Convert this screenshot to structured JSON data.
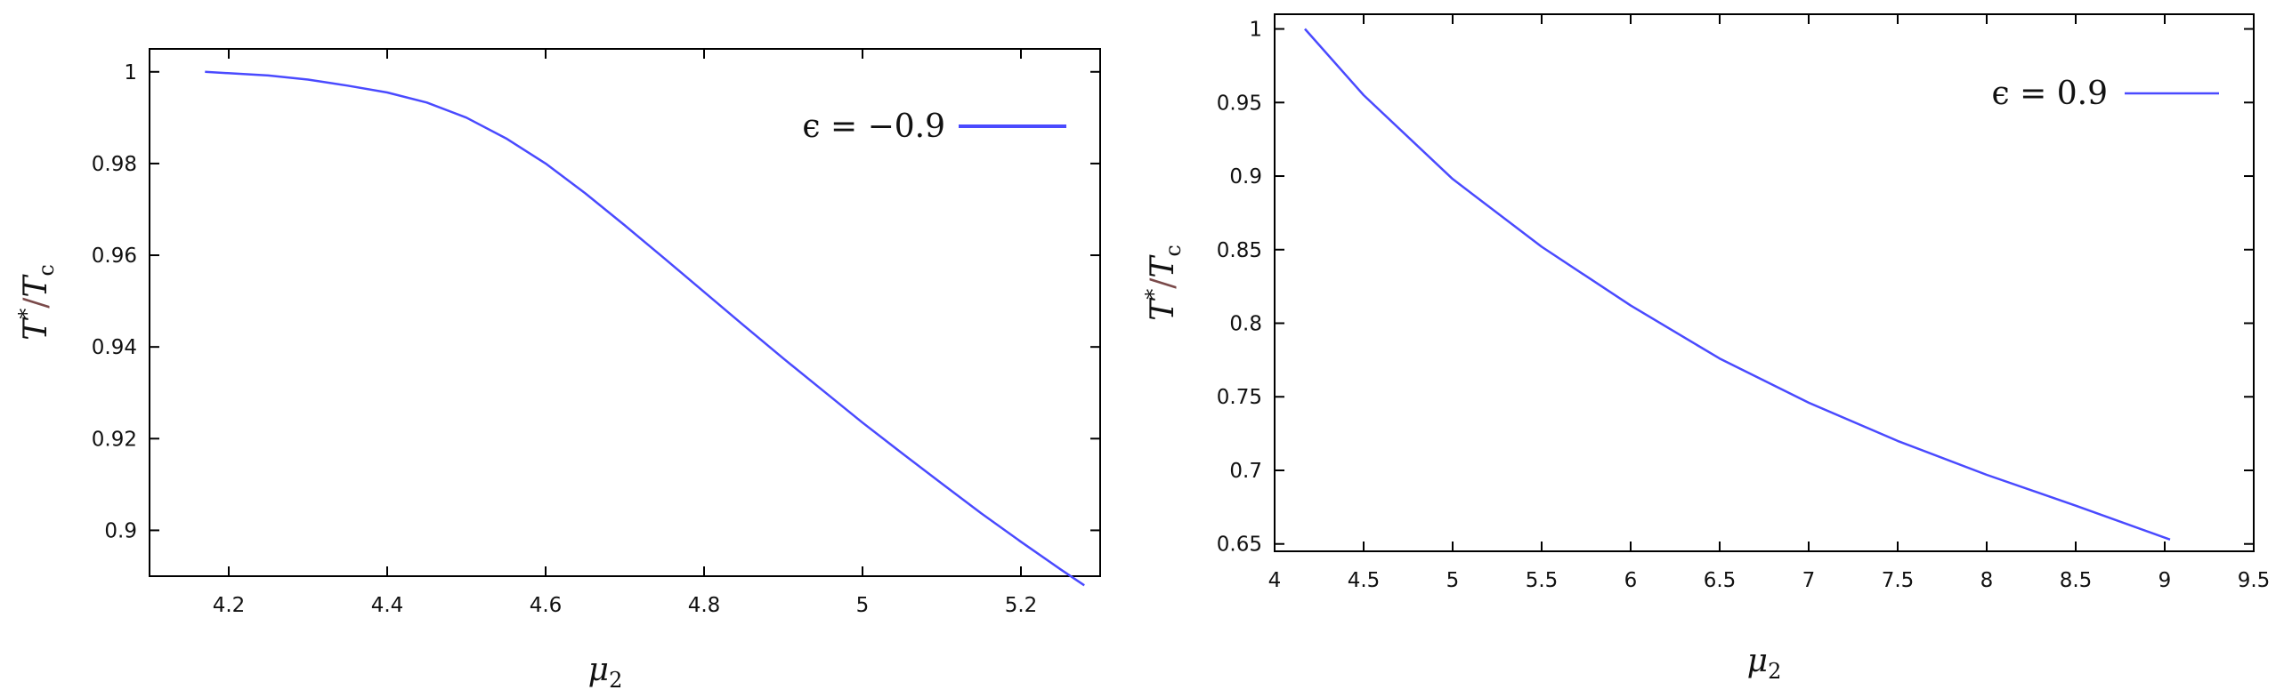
{
  "chart_data": [
    {
      "type": "line",
      "xlabel": {
        "base": "μ",
        "sub": "2"
      },
      "ylabel": {
        "num": "T",
        "num_sup": "*",
        "den": "T",
        "den_sub": "c"
      },
      "xlim": [
        4.1,
        5.3
      ],
      "ylim": [
        0.89,
        1.005
      ],
      "xticks": [
        4.2,
        4.4,
        4.6,
        4.8,
        5.0,
        5.2
      ],
      "xtick_labels": [
        "4.2",
        "4.4",
        "4.6",
        "4.8",
        "5",
        "5.2"
      ],
      "yticks": [
        0.9,
        0.92,
        0.94,
        0.96,
        0.98,
        1.0
      ],
      "ytick_labels": [
        "0.9",
        "0.92",
        "0.94",
        "0.96",
        "0.98",
        "1"
      ],
      "grid": false,
      "legend_position": "top-right",
      "series": [
        {
          "name": "ϵ = −0.9",
          "color": "#4a4aff",
          "x": [
            4.17,
            4.25,
            4.3,
            4.35,
            4.4,
            4.45,
            4.5,
            4.55,
            4.6,
            4.65,
            4.7,
            4.75,
            4.8,
            4.85,
            4.9,
            4.95,
            5.0,
            5.05,
            5.1,
            5.15,
            5.2,
            5.25,
            5.28
          ],
          "y": [
            1.0,
            0.9992,
            0.9983,
            0.997,
            0.9955,
            0.9933,
            0.99,
            0.9855,
            0.98,
            0.9735,
            0.9665,
            0.9593,
            0.952,
            0.9447,
            0.9375,
            0.9305,
            0.9235,
            0.9168,
            0.9102,
            0.9037,
            0.8975,
            0.8915,
            0.888
          ]
        }
      ]
    },
    {
      "type": "line",
      "xlabel": {
        "base": "μ",
        "sub": "2"
      },
      "ylabel": {
        "num": "T",
        "num_sup": "*",
        "den": "T",
        "den_sub": "c"
      },
      "xlim": [
        4.0,
        9.5
      ],
      "ylim": [
        0.645,
        1.01
      ],
      "xticks": [
        4,
        4.5,
        5,
        5.5,
        6,
        6.5,
        7,
        7.5,
        8,
        8.5,
        9,
        9.5
      ],
      "xtick_labels": [
        "4",
        "4.5",
        "5",
        "5.5",
        "6",
        "6.5",
        "7",
        "7.5",
        "8",
        "8.5",
        "9",
        "9.5"
      ],
      "yticks": [
        0.65,
        0.7,
        0.75,
        0.8,
        0.85,
        0.9,
        0.95,
        1.0
      ],
      "ytick_labels": [
        "0.65",
        "0.7",
        "0.75",
        "0.8",
        "0.85",
        "0.9",
        "0.95",
        "1"
      ],
      "grid": false,
      "legend_position": "top-right",
      "series": [
        {
          "name": "ϵ = 0.9",
          "color": "#4a4aff",
          "x": [
            4.17,
            4.5,
            5.0,
            5.5,
            6.0,
            6.5,
            7.0,
            7.5,
            8.0,
            8.5,
            9.03
          ],
          "y": [
            1.0,
            0.955,
            0.898,
            0.852,
            0.812,
            0.776,
            0.746,
            0.72,
            0.697,
            0.676,
            0.653
          ]
        }
      ]
    }
  ]
}
